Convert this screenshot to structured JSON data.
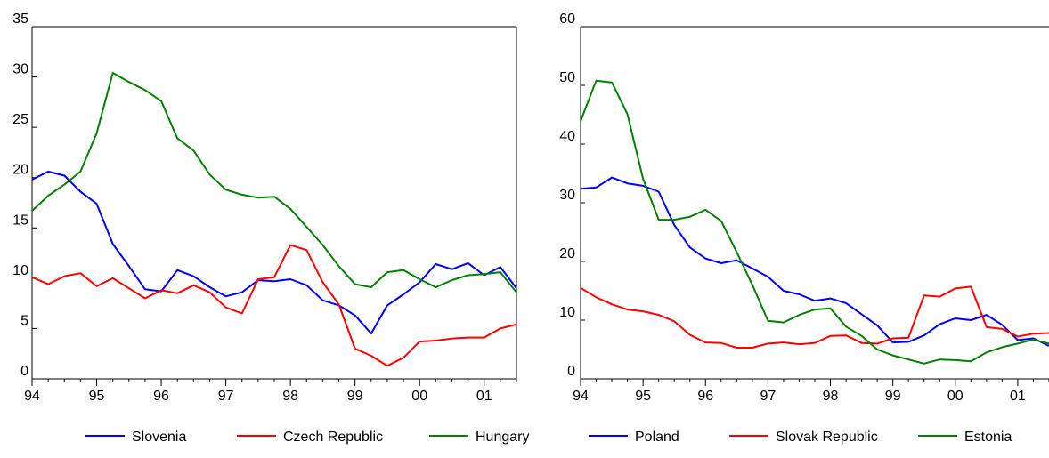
{
  "chart_data": [
    {
      "type": "line",
      "x_tick_labels": [
        "94",
        "95",
        "96",
        "97",
        "98",
        "99",
        "00",
        "01"
      ],
      "x": [
        1994.0,
        1994.25,
        1994.5,
        1994.75,
        1995.0,
        1995.25,
        1995.5,
        1995.75,
        1996.0,
        1996.25,
        1996.5,
        1996.75,
        1997.0,
        1997.25,
        1997.5,
        1997.75,
        1998.0,
        1998.25,
        1998.5,
        1998.75,
        1999.0,
        1999.25,
        1999.5,
        1999.75,
        2000.0,
        2000.25,
        2000.5,
        2000.75,
        2001.0,
        2001.25,
        2001.5
      ],
      "xlim": [
        1994.0,
        2001.5
      ],
      "ylim": [
        0,
        35
      ],
      "y_ticks": [
        0,
        5,
        10,
        15,
        20,
        25,
        30,
        35
      ],
      "legend_placement": "bottom",
      "series": [
        {
          "name": "Slovenia",
          "color": "#0000ff",
          "values": [
            19.8,
            20.6,
            20.2,
            18.6,
            17.4,
            13.4,
            11.2,
            8.9,
            8.7,
            10.8,
            10.2,
            9.1,
            8.2,
            8.6,
            9.8,
            9.7,
            9.9,
            9.3,
            7.8,
            7.3,
            6.3,
            4.5,
            7.3,
            8.4,
            9.6,
            11.4,
            10.9,
            11.5,
            10.3,
            11.1,
            9.0
          ]
        },
        {
          "name": "Czech Republic",
          "color": "#ff0000",
          "values": [
            10.1,
            9.4,
            10.2,
            10.5,
            9.2,
            10.0,
            9.0,
            8.0,
            8.8,
            8.5,
            9.3,
            8.6,
            7.1,
            6.5,
            9.9,
            10.1,
            13.3,
            12.8,
            9.6,
            7.4,
            3.0,
            2.3,
            1.3,
            2.1,
            3.7,
            3.8,
            4.0,
            4.1,
            4.1,
            5.0,
            5.4
          ]
        },
        {
          "name": "Hungary",
          "color": "#008000",
          "values": [
            16.7,
            18.2,
            19.3,
            20.6,
            24.4,
            30.4,
            29.5,
            28.7,
            27.6,
            23.9,
            22.7,
            20.3,
            18.8,
            18.3,
            18.0,
            18.1,
            16.9,
            15.1,
            13.3,
            11.2,
            9.4,
            9.1,
            10.6,
            10.8,
            9.9,
            9.1,
            9.8,
            10.3,
            10.4,
            10.6,
            8.6
          ]
        }
      ]
    },
    {
      "type": "line",
      "x_tick_labels": [
        "94",
        "95",
        "96",
        "97",
        "98",
        "99",
        "00",
        "01"
      ],
      "x": [
        1994.0,
        1994.25,
        1994.5,
        1994.75,
        1995.0,
        1995.25,
        1995.5,
        1995.75,
        1996.0,
        1996.25,
        1996.5,
        1996.75,
        1997.0,
        1997.25,
        1997.5,
        1997.75,
        1998.0,
        1998.25,
        1998.5,
        1998.75,
        1999.0,
        1999.25,
        1999.5,
        1999.75,
        2000.0,
        2000.25,
        2000.5,
        2000.75,
        2001.0,
        2001.25,
        2001.5
      ],
      "xlim": [
        1994.0,
        2001.5
      ],
      "ylim": [
        0,
        60
      ],
      "y_ticks": [
        0,
        10,
        20,
        30,
        40,
        50,
        60
      ],
      "legend_placement": "bottom",
      "series": [
        {
          "name": "Poland",
          "color": "#0000ff",
          "values": [
            32.4,
            32.6,
            34.3,
            33.3,
            32.9,
            31.9,
            26.2,
            22.4,
            20.5,
            19.7,
            20.2,
            18.8,
            17.4,
            15.0,
            14.4,
            13.3,
            13.7,
            12.9,
            11.0,
            9.1,
            6.2,
            6.3,
            7.4,
            9.3,
            10.3,
            10.0,
            10.9,
            9.2,
            6.6,
            6.9,
            5.6
          ]
        },
        {
          "name": "Slovak Republic",
          "color": "#ff0000",
          "values": [
            15.5,
            13.9,
            12.7,
            11.8,
            11.5,
            10.9,
            9.8,
            7.5,
            6.2,
            6.1,
            5.3,
            5.3,
            6.0,
            6.2,
            5.9,
            6.1,
            7.3,
            7.4,
            6.1,
            6.0,
            6.9,
            7.0,
            14.2,
            14.0,
            15.4,
            15.7,
            8.8,
            8.5,
            7.2,
            7.7,
            7.8
          ]
        },
        {
          "name": "Estonia",
          "color": "#008000",
          "values": [
            43.9,
            50.8,
            50.5,
            45.1,
            34.1,
            27.1,
            27.1,
            27.6,
            28.8,
            26.9,
            21.6,
            16.0,
            9.9,
            9.6,
            10.9,
            11.8,
            12.0,
            8.9,
            7.3,
            5.0,
            4.0,
            3.3,
            2.6,
            3.3,
            3.2,
            3.0,
            4.5,
            5.4,
            6.0,
            6.7,
            6.0
          ]
        }
      ]
    }
  ]
}
